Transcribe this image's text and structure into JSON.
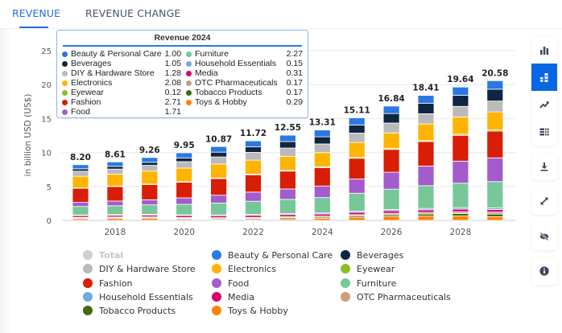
{
  "tabs": [
    {
      "label": "REVENUE",
      "active": true
    },
    {
      "label": "REVENUE CHANGE",
      "active": false
    }
  ],
  "toolbar": {
    "items": [
      "bar-chart-icon",
      "stacked-bar-icon",
      "line-chart-icon",
      "table-icon",
      "download-icon",
      "fullscreen-icon",
      "hide-icon",
      "info-icon"
    ],
    "active": "stacked-bar-icon",
    "accent": "#0b66e4"
  },
  "tooltip": {
    "title": "Revenue 2024",
    "rows": [
      {
        "label": "Beauty & Personal Care",
        "value": "1.00"
      },
      {
        "label": "Beverages",
        "value": "1.05"
      },
      {
        "label": "DIY & Hardware Store",
        "value": "1.28"
      },
      {
        "label": "Electronics",
        "value": "2.08"
      },
      {
        "label": "Eyewear",
        "value": "0.12"
      },
      {
        "label": "Fashion",
        "value": "2.71"
      },
      {
        "label": "Food",
        "value": "1.71"
      },
      {
        "label": "Furniture",
        "value": "2.27"
      },
      {
        "label": "Household Essentials",
        "value": "0.15"
      },
      {
        "label": "Media",
        "value": "0.31"
      },
      {
        "label": "OTC Pharmaceuticals",
        "value": "0.17"
      },
      {
        "label": "Tobacco Products",
        "value": "0.17"
      },
      {
        "label": "Toys & Hobby",
        "value": "0.29"
      }
    ]
  },
  "chart_data": {
    "type": "bar",
    "stacked": true,
    "title": "",
    "ylabel": "in billion USD (US$)",
    "xlabel": "",
    "ylim": [
      0,
      25
    ],
    "yticks": [
      0,
      5,
      10,
      15,
      20,
      25
    ],
    "xtick_labels": [
      "2018",
      "2020",
      "2022",
      "2024",
      "2026",
      "2028"
    ],
    "grid": true,
    "legend_placement": "bottom",
    "hovered_category": "2024",
    "categories": [
      "2017",
      "2018",
      "2019",
      "2020",
      "2021",
      "2022",
      "2023",
      "2024",
      "2025",
      "2026",
      "2027",
      "2028",
      "2029"
    ],
    "totals": [
      "8.20",
      "8.61",
      "9.26",
      "9.95",
      "10.87",
      "11.72",
      "12.55",
      "13.31",
      "15.11",
      "16.84",
      "18.41",
      "19.64",
      "20.58"
    ],
    "total_series": {
      "name": "Total",
      "color": "#cfcfcf",
      "visible": false
    },
    "series": [
      {
        "name": "Toys & Hobby",
        "color": "#ff8200",
        "values": [
          0.25,
          0.3,
          0.28,
          0.17,
          0.12,
          0.14,
          0.24,
          0.29,
          0.45,
          0.6,
          0.63,
          0.65,
          0.55
        ]
      },
      {
        "name": "Tobacco Products",
        "color": "#3e6a0f",
        "values": [
          0.1,
          0.1,
          0.12,
          0.13,
          0.14,
          0.15,
          0.16,
          0.17,
          0.2,
          0.24,
          0.3,
          0.35,
          0.38
        ]
      },
      {
        "name": "OTC Pharmaceuticals",
        "color": "#c8a078",
        "values": [
          0.1,
          0.1,
          0.12,
          0.13,
          0.14,
          0.15,
          0.16,
          0.17,
          0.2,
          0.22,
          0.25,
          0.27,
          0.29
        ]
      },
      {
        "name": "Media",
        "color": "#d9006e",
        "values": [
          0.25,
          0.25,
          0.27,
          0.28,
          0.29,
          0.3,
          0.3,
          0.31,
          0.33,
          0.35,
          0.37,
          0.38,
          0.39
        ]
      },
      {
        "name": "Household Essentials",
        "color": "#74a7e6",
        "values": [
          0.1,
          0.1,
          0.1,
          0.11,
          0.12,
          0.13,
          0.14,
          0.15,
          0.17,
          0.19,
          0.21,
          0.23,
          0.25
        ]
      },
      {
        "name": "Furniture",
        "color": "#77c798",
        "values": [
          1.25,
          1.3,
          1.4,
          1.55,
          1.75,
          1.95,
          2.1,
          2.27,
          2.65,
          3.0,
          3.35,
          3.6,
          3.85
        ]
      },
      {
        "name": "Food",
        "color": "#a45ccd",
        "values": [
          0.6,
          0.7,
          0.75,
          0.95,
          1.15,
          1.35,
          1.53,
          1.71,
          2.1,
          2.5,
          2.9,
          3.25,
          3.5
        ]
      },
      {
        "name": "Fashion",
        "color": "#d81e05",
        "values": [
          2.1,
          2.15,
          2.25,
          2.3,
          2.45,
          2.55,
          2.63,
          2.71,
          3.05,
          3.35,
          3.6,
          3.8,
          3.95
        ]
      },
      {
        "name": "Eyewear",
        "color": "#8bbd26",
        "values": [
          0.05,
          0.06,
          0.07,
          0.08,
          0.09,
          0.1,
          0.11,
          0.12,
          0.13,
          0.14,
          0.15,
          0.16,
          0.17
        ]
      },
      {
        "name": "Electronics",
        "color": "#ffb400",
        "values": [
          1.7,
          1.75,
          1.9,
          2.0,
          2.05,
          2.05,
          2.07,
          2.08,
          2.2,
          2.3,
          2.45,
          2.55,
          2.65
        ]
      },
      {
        "name": "DIY & Hardware Store",
        "color": "#bababa",
        "values": [
          0.75,
          0.75,
          0.85,
          0.95,
          1.05,
          1.15,
          1.22,
          1.28,
          1.38,
          1.45,
          1.5,
          1.55,
          1.6
        ]
      },
      {
        "name": "Beverages",
        "color": "#0f2642",
        "values": [
          0.35,
          0.4,
          0.45,
          0.55,
          0.7,
          0.82,
          0.95,
          1.05,
          1.2,
          1.4,
          1.55,
          1.65,
          1.75
        ]
      },
      {
        "name": "Beauty & Personal Care",
        "color": "#2a78e4",
        "values": [
          0.6,
          0.65,
          0.7,
          0.75,
          0.82,
          0.88,
          0.94,
          1.0,
          1.05,
          1.1,
          1.15,
          1.2,
          1.25
        ]
      }
    ],
    "legend_order": [
      "Total",
      "Beauty & Personal Care",
      "Beverages",
      "DIY & Hardware Store",
      "Electronics",
      "Eyewear",
      "Fashion",
      "Food",
      "Furniture",
      "Household Essentials",
      "Media",
      "OTC Pharmaceuticals",
      "Tobacco Products",
      "Toys & Hobby"
    ]
  }
}
